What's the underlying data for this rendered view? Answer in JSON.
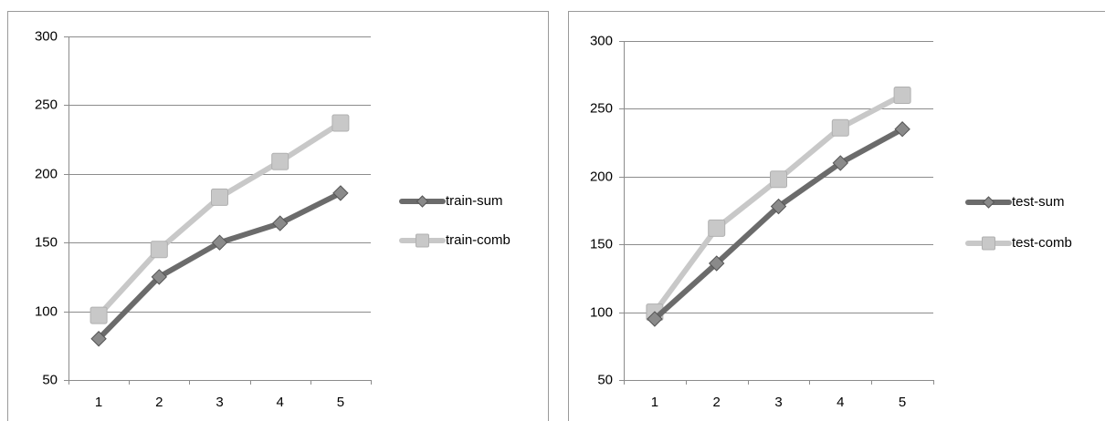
{
  "chart_data": [
    {
      "type": "line",
      "title": "",
      "xlabel": "",
      "ylabel": "",
      "x": [
        1,
        2,
        3,
        4,
        5
      ],
      "yticks": [
        50,
        100,
        150,
        200,
        250,
        300
      ],
      "ylim": [
        50,
        300
      ],
      "grid": true,
      "legend_position": "right",
      "series": [
        {
          "name": "train-sum",
          "values": [
            80,
            125,
            150,
            164,
            186
          ],
          "color": "#6b6b6b",
          "marker": "diamond"
        },
        {
          "name": "train-comb",
          "values": [
            97,
            145,
            183,
            209,
            237
          ],
          "color": "#c8c8c8",
          "marker": "square"
        }
      ]
    },
    {
      "type": "line",
      "title": "",
      "xlabel": "",
      "ylabel": "",
      "x": [
        1,
        2,
        3,
        4,
        5
      ],
      "yticks": [
        50,
        100,
        150,
        200,
        250,
        300
      ],
      "ylim": [
        50,
        300
      ],
      "grid": true,
      "legend_position": "right",
      "series": [
        {
          "name": "test-sum",
          "values": [
            95,
            136,
            178,
            210,
            235
          ],
          "color": "#6b6b6b",
          "marker": "diamond"
        },
        {
          "name": "test-comb",
          "values": [
            100,
            162,
            198,
            236,
            260
          ],
          "color": "#c8c8c8",
          "marker": "square"
        }
      ]
    }
  ]
}
